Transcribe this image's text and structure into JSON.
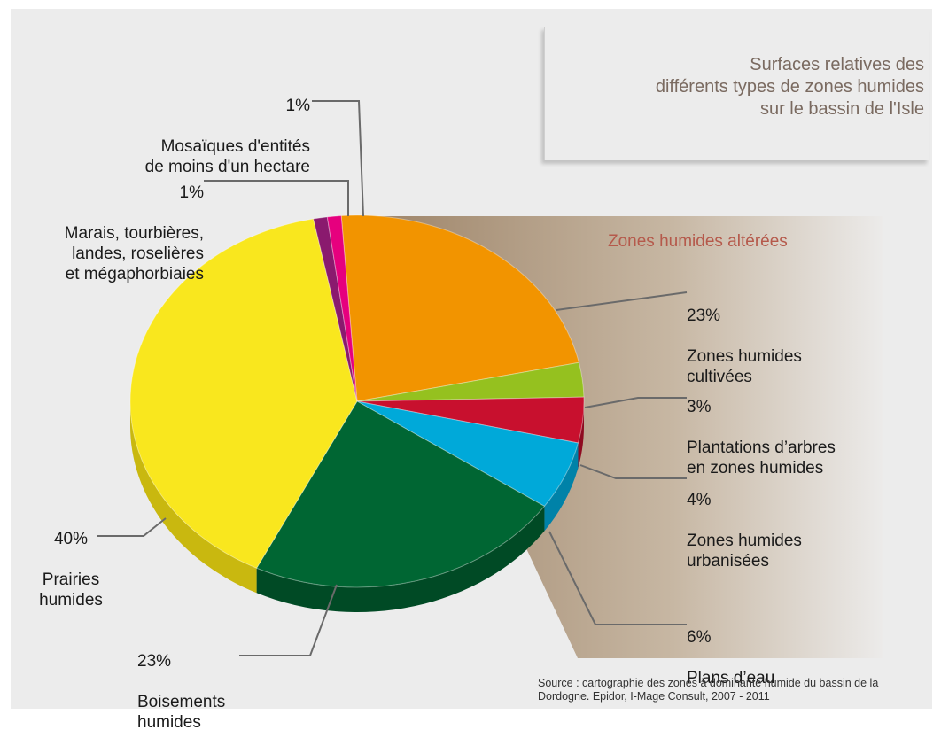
{
  "chart_data": {
    "type": "pie",
    "title": "Surfaces relatives des\ndifférents types de zones humides\nsur le bassin de l'Isle",
    "slices": [
      {
        "percent_label": "23%",
        "name": "Zones humides\ncultivées",
        "value": 23,
        "color": "#f29400",
        "side": "#c97a00"
      },
      {
        "percent_label": "3%",
        "name": "Plantations d’arbres\nen zones humides",
        "value": 3,
        "color": "#95c11f",
        "side": "#6f9217"
      },
      {
        "percent_label": "4%",
        "name": "Zones humides\nurbanisées",
        "value": 4,
        "color": "#c8102e",
        "side": "#8f0b21"
      },
      {
        "percent_label": "6%",
        "name": "Plans d’eau",
        "value": 6,
        "color": "#00a9d9",
        "side": "#0082a8"
      },
      {
        "percent_label": "23%",
        "name": "Boisements\nhumides",
        "value": 23,
        "color": "#006633",
        "side": "#004a25"
      },
      {
        "percent_label": "40%",
        "name": "Prairies\nhumides",
        "value": 40,
        "color": "#f9e71e",
        "side": "#c9b80f"
      },
      {
        "percent_label": "1%",
        "name": "Marais, tourbières,\nlandes, roselières\net mégaphorbiaies",
        "value": 1,
        "color": "#8a1a6e",
        "side": "#601250"
      },
      {
        "percent_label": "1%",
        "name": "Mosaïques d'entités\nde moins d'un hectare",
        "value": 1,
        "color": "#e6007e",
        "side": "#a8005c"
      }
    ],
    "altered_group_label": "Zones humides altérées",
    "source": "Source : cartographie des zones à dominante humide du bassin de la Dordogne. Epidor, I-Mage Consult, 2007 - 2011"
  }
}
